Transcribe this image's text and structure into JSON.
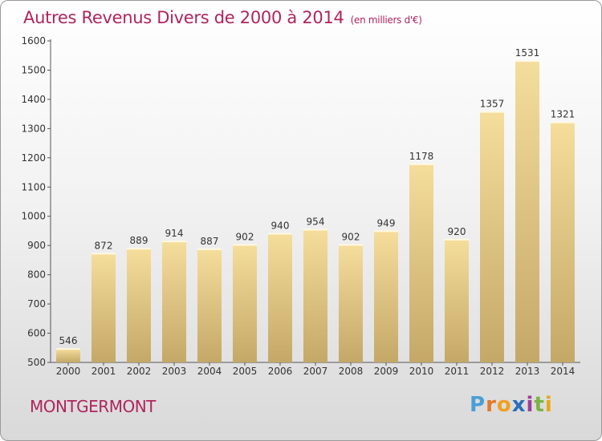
{
  "chart_data": {
    "type": "bar",
    "title": "Autres Revenus Divers de 2000 à 2014",
    "unit": "(en milliers d'€)",
    "xlabel": "",
    "ylabel": "",
    "categories": [
      "2000",
      "2001",
      "2002",
      "2003",
      "2004",
      "2005",
      "2006",
      "2007",
      "2008",
      "2009",
      "2010",
      "2011",
      "2012",
      "2013",
      "2014"
    ],
    "values": [
      546,
      872,
      889,
      914,
      887,
      902,
      940,
      954,
      902,
      949,
      1178,
      920,
      1357,
      1531,
      1321
    ],
    "ylim": [
      500,
      1600
    ],
    "yticks": [
      500,
      600,
      700,
      800,
      900,
      1000,
      1100,
      1200,
      1300,
      1400,
      1500,
      1600
    ],
    "grid": false,
    "bar_color_top": "#f5dd9c",
    "bar_color_bottom": "#c4a868"
  },
  "footer": {
    "town": "MONTGERMONT"
  },
  "logo": {
    "letters": [
      "P",
      "r",
      "o",
      "x",
      "i",
      "t",
      "i"
    ],
    "colors": [
      "#4a9fd8",
      "#e07a2a",
      "#f0a020",
      "#2b6fb8",
      "#9c3f9c",
      "#7cb342",
      "#e6a817"
    ]
  },
  "colors": {
    "title": "#b0245e",
    "axis": "#555555",
    "text": "#333333"
  }
}
